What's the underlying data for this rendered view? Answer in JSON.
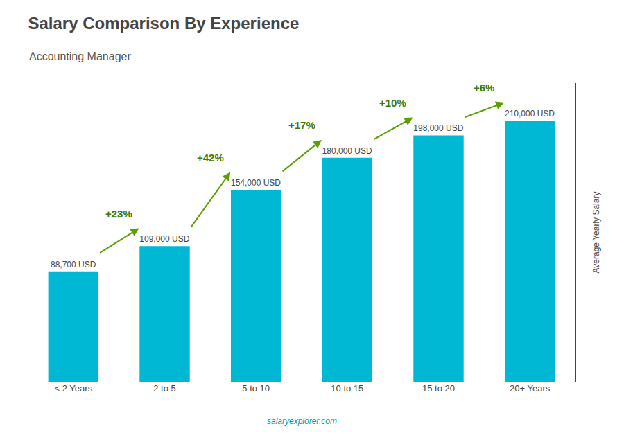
{
  "chart_data": {
    "type": "bar",
    "title": "Salary Comparison By Experience",
    "subtitle": "Accounting Manager",
    "ylabel": "Average Yearly Salary",
    "categories": [
      "< 2 Years",
      "2 to 5",
      "5 to 10",
      "10 to 15",
      "15 to 20",
      "20+ Years"
    ],
    "values": [
      88700,
      109000,
      154000,
      180000,
      198000,
      210000
    ],
    "value_labels": [
      "88,700 USD",
      "109,000 USD",
      "154,000 USD",
      "180,000 USD",
      "198,000 USD",
      "210,000 USD"
    ],
    "data_labels": true,
    "annotations": [
      "+23%",
      "+42%",
      "+17%",
      "+10%",
      "+6%",
      "salaryexplorer.com"
    ],
    "color": "#00b8d4",
    "ylim": [
      0,
      240000
    ],
    "yticks": [],
    "tick_labels": "x",
    "grid": false
  }
}
